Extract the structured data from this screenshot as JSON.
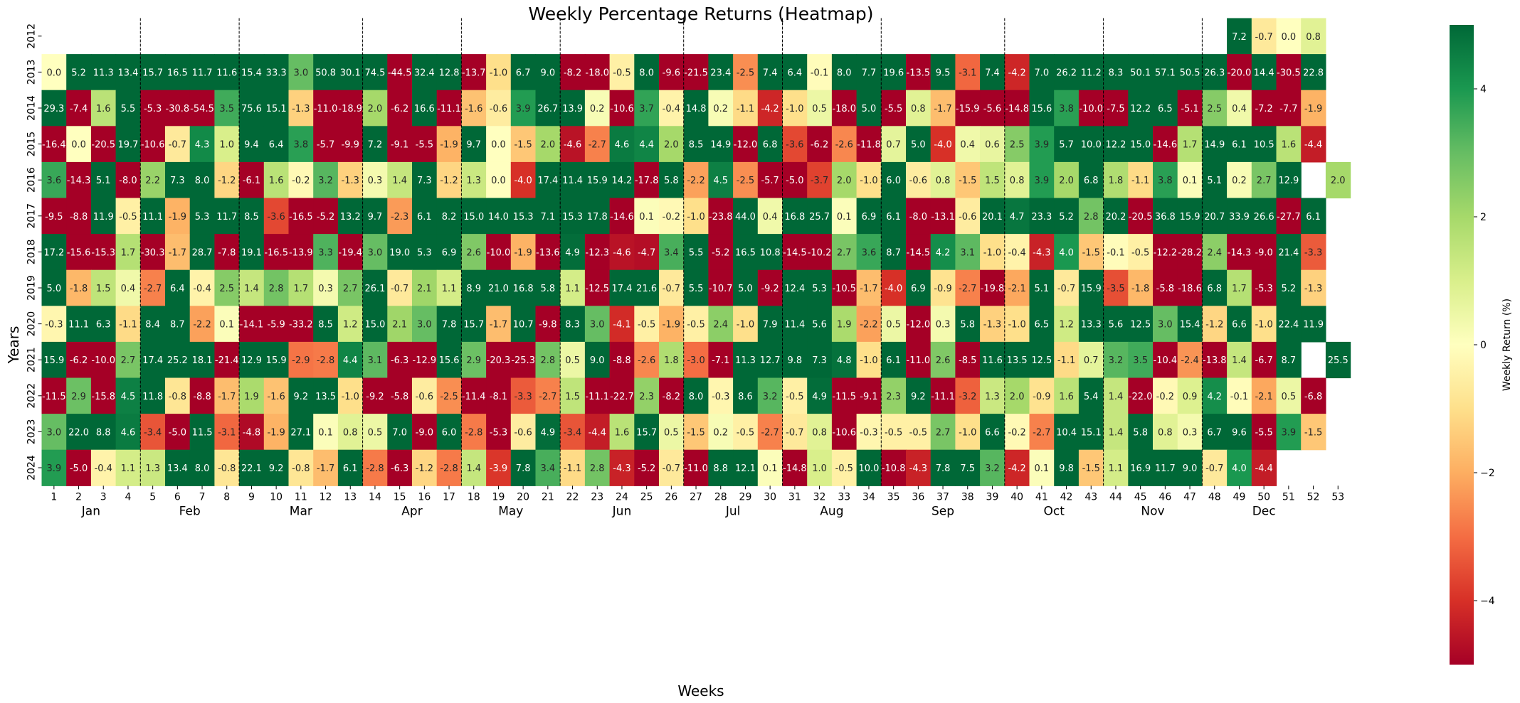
{
  "chart_data": {
    "type": "heatmap",
    "title": "Weekly Percentage Returns (Heatmap)",
    "xlabel": "Weeks",
    "ylabel": "Years",
    "colorbar_label": "Weekly Return (%)",
    "colormap": "RdYlGn",
    "vmin": -5,
    "vmax": 5,
    "colorbar_ticks": [
      "4",
      "2",
      "0",
      "−2",
      "−4"
    ],
    "colorbar_tick_values": [
      4,
      2,
      0,
      -2,
      -4
    ],
    "weeks": [
      "1",
      "2",
      "3",
      "4",
      "5",
      "6",
      "7",
      "8",
      "9",
      "10",
      "11",
      "12",
      "13",
      "14",
      "15",
      "16",
      "17",
      "18",
      "19",
      "20",
      "21",
      "22",
      "23",
      "24",
      "25",
      "26",
      "27",
      "28",
      "29",
      "30",
      "31",
      "32",
      "33",
      "34",
      "35",
      "36",
      "37",
      "38",
      "39",
      "40",
      "41",
      "42",
      "43",
      "44",
      "45",
      "46",
      "47",
      "48",
      "49",
      "50",
      "51",
      "52",
      "53"
    ],
    "years": [
      "2012",
      "2013",
      "2014",
      "2015",
      "2016",
      "2017",
      "2018",
      "2019",
      "2020",
      "2021",
      "2022",
      "2023",
      "2024"
    ],
    "months": [
      {
        "label": "Jan",
        "start_week": 1,
        "end_week": 4
      },
      {
        "label": "Feb",
        "start_week": 5,
        "end_week": 8
      },
      {
        "label": "Mar",
        "start_week": 9,
        "end_week": 13
      },
      {
        "label": "Apr",
        "start_week": 14,
        "end_week": 17
      },
      {
        "label": "May",
        "start_week": 18,
        "end_week": 21
      },
      {
        "label": "Jun",
        "start_week": 22,
        "end_week": 26
      },
      {
        "label": "Jul",
        "start_week": 27,
        "end_week": 30
      },
      {
        "label": "Aug",
        "start_week": 31,
        "end_week": 34
      },
      {
        "label": "Sep",
        "start_week": 35,
        "end_week": 39
      },
      {
        "label": "Oct",
        "start_week": 40,
        "end_week": 43
      },
      {
        "label": "Nov",
        "start_week": 44,
        "end_week": 47
      },
      {
        "label": "Dec",
        "start_week": 48,
        "end_week": 52
      }
    ],
    "month_boundaries_after_week": [
      4,
      8,
      13,
      17,
      21,
      26,
      30,
      34,
      39,
      43,
      47
    ],
    "values": [
      [
        null,
        null,
        null,
        null,
        null,
        null,
        null,
        null,
        null,
        null,
        null,
        null,
        null,
        null,
        null,
        null,
        null,
        null,
        null,
        null,
        null,
        null,
        null,
        null,
        null,
        null,
        null,
        null,
        null,
        null,
        null,
        null,
        null,
        null,
        null,
        null,
        null,
        null,
        null,
        null,
        null,
        null,
        null,
        null,
        null,
        null,
        null,
        null,
        7.2,
        -0.7,
        0.0,
        0.8,
        null
      ],
      [
        0.0,
        5.2,
        11.3,
        13.4,
        15.7,
        16.5,
        11.7,
        11.6,
        15.4,
        33.3,
        3.0,
        50.8,
        30.1,
        74.5,
        -44.5,
        32.4,
        12.8,
        -13.7,
        -1.0,
        6.7,
        9.0,
        -8.2,
        -18.0,
        -0.5,
        8.0,
        -9.6,
        -21.5,
        23.4,
        -2.5,
        7.4,
        6.4,
        -0.1,
        8.0,
        7.7,
        19.6,
        -13.5,
        9.5,
        -3.1,
        7.4,
        -4.2,
        7.0,
        26.2,
        11.2,
        8.3,
        50.1,
        57.1,
        50.5,
        26.3,
        -20.0,
        14.4,
        -30.5,
        22.8,
        null
      ],
      [
        29.3,
        -7.4,
        1.6,
        5.5,
        -5.3,
        -30.8,
        -54.5,
        3.5,
        75.6,
        15.1,
        -1.3,
        -11.0,
        -18.9,
        2.0,
        -6.2,
        16.6,
        -11.1,
        -1.6,
        -0.6,
        3.9,
        26.7,
        13.9,
        0.2,
        -10.6,
        3.7,
        -0.4,
        14.8,
        0.2,
        -1.1,
        -4.2,
        -1.0,
        0.5,
        -18.0,
        5.0,
        -5.5,
        0.8,
        -1.7,
        -15.9,
        -5.6,
        -14.8,
        15.6,
        3.8,
        -10.0,
        -7.5,
        12.2,
        6.5,
        -5.1,
        2.5,
        0.4,
        -7.2,
        -7.7,
        -1.9,
        null
      ],
      [
        -16.4,
        0.0,
        -20.5,
        19.7,
        -10.6,
        -0.7,
        4.3,
        1.0,
        9.4,
        6.4,
        3.8,
        -5.7,
        -9.9,
        7.2,
        -9.1,
        -5.5,
        -1.9,
        9.7,
        0.0,
        -1.5,
        2.0,
        -4.6,
        -2.7,
        4.6,
        4.4,
        2.0,
        8.5,
        14.9,
        -12.0,
        6.8,
        -3.6,
        -6.2,
        -2.6,
        -11.8,
        0.7,
        5.0,
        -4.0,
        0.4,
        0.6,
        2.5,
        3.9,
        5.7,
        10.0,
        12.2,
        15.0,
        -14.6,
        1.7,
        14.9,
        6.1,
        10.5,
        1.6,
        -4.4,
        null
      ],
      [
        3.6,
        -14.3,
        5.1,
        -8.0,
        2.2,
        7.3,
        8.0,
        -1.2,
        -6.1,
        1.6,
        -0.2,
        3.2,
        -1.3,
        0.3,
        1.4,
        7.3,
        -1.2,
        1.3,
        0.0,
        -4.0,
        17.4,
        11.4,
        15.9,
        14.2,
        -17.8,
        5.8,
        -2.2,
        4.5,
        -2.5,
        -5.7,
        -5.0,
        -3.7,
        2.0,
        -1.0,
        6.0,
        -0.6,
        0.8,
        -1.5,
        1.5,
        0.8,
        3.9,
        2.0,
        6.8,
        1.8,
        -1.1,
        3.8,
        0.1,
        5.1,
        0.2,
        2.7,
        12.9,
        null,
        2.0
      ],
      [
        -9.5,
        -8.8,
        11.9,
        -0.5,
        11.1,
        -1.9,
        5.3,
        11.7,
        8.5,
        -3.6,
        -16.5,
        -5.2,
        13.2,
        9.7,
        -2.3,
        6.1,
        8.2,
        15.0,
        14.0,
        15.3,
        7.1,
        15.3,
        17.8,
        -14.6,
        0.1,
        -0.2,
        -1.0,
        -23.8,
        44.0,
        0.4,
        16.8,
        25.7,
        0.1,
        6.9,
        6.1,
        -8.0,
        -13.1,
        -0.6,
        20.1,
        4.7,
        23.3,
        5.2,
        2.8,
        20.2,
        -20.5,
        36.8,
        15.9,
        20.7,
        33.9,
        26.6,
        -27.7,
        6.1,
        null
      ],
      [
        17.2,
        -15.6,
        -15.3,
        1.7,
        -30.3,
        -1.7,
        28.7,
        -7.8,
        19.1,
        -16.5,
        -13.9,
        3.3,
        -19.4,
        3.0,
        19.0,
        5.3,
        6.9,
        2.6,
        -10.0,
        -1.9,
        -13.6,
        4.9,
        -12.3,
        -4.6,
        -4.7,
        3.4,
        5.5,
        -5.2,
        16.5,
        10.8,
        -14.5,
        -10.2,
        2.7,
        3.6,
        8.7,
        -14.5,
        4.2,
        3.1,
        -1.0,
        -0.4,
        -4.3,
        4.0,
        -1.5,
        -0.1,
        -0.5,
        -12.2,
        -28.2,
        2.4,
        -14.3,
        -9.0,
        21.4,
        -3.3,
        null
      ],
      [
        5.0,
        -1.8,
        1.5,
        0.4,
        -2.7,
        6.4,
        -0.4,
        2.5,
        1.4,
        2.8,
        1.7,
        0.3,
        2.7,
        26.1,
        -0.7,
        2.1,
        1.1,
        8.9,
        21.0,
        16.8,
        5.8,
        1.1,
        -12.5,
        17.4,
        21.6,
        -0.7,
        5.5,
        -10.7,
        5.0,
        -9.2,
        12.4,
        5.3,
        -10.5,
        -1.7,
        -4.0,
        6.9,
        -0.9,
        -2.7,
        -19.8,
        -2.1,
        5.1,
        -0.7,
        15.9,
        -3.5,
        -1.8,
        -5.8,
        -18.6,
        6.8,
        1.7,
        -5.3,
        5.2,
        -1.3,
        null
      ],
      [
        -0.3,
        11.1,
        6.3,
        -1.1,
        8.4,
        8.7,
        -2.2,
        0.1,
        -14.1,
        -5.9,
        -33.2,
        8.5,
        1.2,
        15.0,
        2.1,
        3.0,
        7.8,
        15.7,
        -1.7,
        10.7,
        -9.8,
        8.3,
        3.0,
        -4.1,
        -0.5,
        -1.9,
        -0.5,
        2.4,
        -1.0,
        7.9,
        11.4,
        5.6,
        1.9,
        -2.2,
        0.5,
        -12.0,
        0.3,
        5.8,
        -1.3,
        -1.0,
        6.5,
        1.2,
        13.3,
        5.6,
        12.5,
        3.0,
        15.4,
        -1.2,
        6.6,
        -1.0,
        22.4,
        11.9,
        null
      ],
      [
        15.9,
        -6.2,
        -10.0,
        2.7,
        17.4,
        25.2,
        18.1,
        -21.4,
        12.9,
        15.9,
        -2.9,
        -2.8,
        4.4,
        3.1,
        -6.3,
        -12.9,
        15.6,
        2.9,
        -20.3,
        -25.3,
        2.8,
        0.5,
        9.0,
        -8.8,
        -2.6,
        1.8,
        -3.0,
        -7.1,
        11.3,
        12.7,
        9.8,
        7.3,
        4.8,
        -1.0,
        6.1,
        -11.0,
        2.6,
        -8.5,
        11.6,
        13.5,
        12.5,
        -1.1,
        0.7,
        3.2,
        3.5,
        -10.4,
        -2.4,
        -13.8,
        1.4,
        -6.7,
        8.7,
        null,
        25.5
      ],
      [
        -11.5,
        2.9,
        -15.8,
        4.5,
        11.8,
        -0.8,
        -8.8,
        -1.7,
        1.9,
        -1.6,
        9.2,
        13.5,
        -1.0,
        -9.2,
        -5.8,
        -0.6,
        -2.5,
        -11.4,
        -8.1,
        -3.3,
        -2.7,
        1.5,
        -11.1,
        -22.7,
        2.3,
        -8.2,
        8.0,
        -0.3,
        8.6,
        3.2,
        -0.5,
        4.9,
        -11.5,
        -9.1,
        2.3,
        9.2,
        -11.1,
        -3.2,
        1.3,
        2.0,
        -0.9,
        1.6,
        5.4,
        1.4,
        -22.0,
        -0.2,
        0.9,
        4.2,
        -0.1,
        -2.1,
        0.5,
        -6.8,
        null
      ],
      [
        3.0,
        22.0,
        8.8,
        4.6,
        -3.4,
        -5.0,
        11.5,
        -3.1,
        -4.8,
        -1.9,
        27.1,
        0.1,
        0.8,
        0.5,
        7.0,
        -9.0,
        6.0,
        -2.8,
        -5.3,
        -0.6,
        4.9,
        -3.4,
        -4.4,
        1.6,
        15.7,
        0.5,
        -1.5,
        0.2,
        -0.5,
        -2.7,
        -0.7,
        0.8,
        -10.6,
        -0.3,
        -0.5,
        -0.5,
        2.7,
        -1.0,
        6.6,
        -0.2,
        -2.7,
        10.4,
        15.1,
        1.4,
        5.8,
        0.8,
        0.3,
        6.7,
        9.6,
        -5.5,
        3.9,
        -1.5,
        null
      ],
      [
        3.9,
        -5.0,
        -0.4,
        1.1,
        1.3,
        13.4,
        8.0,
        -0.8,
        22.1,
        9.2,
        -0.8,
        -1.7,
        6.1,
        -2.8,
        -6.3,
        -1.2,
        -2.8,
        1.4,
        -3.9,
        7.8,
        3.4,
        -1.1,
        2.8,
        -4.3,
        -5.2,
        -0.7,
        -11.0,
        8.8,
        12.1,
        0.1,
        -14.8,
        1.0,
        -0.5,
        10.0,
        -10.8,
        -4.3,
        7.8,
        7.5,
        3.2,
        -4.2,
        0.1,
        9.8,
        -1.5,
        1.1,
        16.9,
        11.7,
        9.0,
        -0.7,
        4.0,
        -4.4,
        null,
        null,
        null
      ]
    ]
  }
}
